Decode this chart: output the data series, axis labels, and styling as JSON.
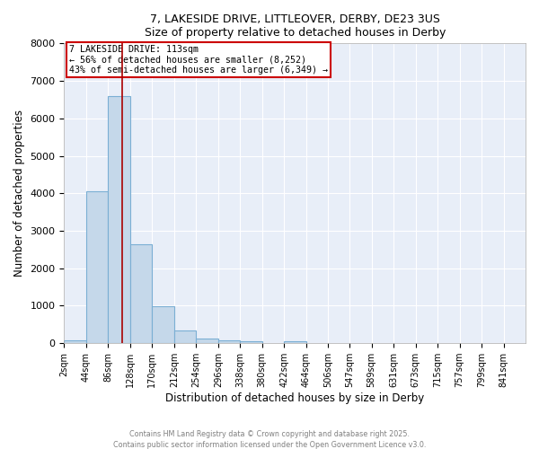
{
  "title_line1": "7, LAKESIDE DRIVE, LITTLEOVER, DERBY, DE23 3US",
  "title_line2": "Size of property relative to detached houses in Derby",
  "xlabel": "Distribution of detached houses by size in Derby",
  "ylabel": "Number of detached properties",
  "bin_edges": [
    2,
    44,
    86,
    128,
    170,
    212,
    254,
    296,
    338,
    380,
    422,
    464,
    506,
    547,
    589,
    631,
    673,
    715,
    757,
    799,
    841
  ],
  "bin_width": 42,
  "bar_heights": [
    80,
    4050,
    6600,
    2650,
    980,
    340,
    120,
    70,
    50,
    0,
    60,
    0,
    0,
    0,
    0,
    0,
    0,
    0,
    0,
    0
  ],
  "bar_color": "#c5d8ea",
  "bar_edgecolor": "#7bafd4",
  "bar_alpha": 1.0,
  "vline_x": 113,
  "vline_color": "#aa0000",
  "annotation_title": "7 LAKESIDE DRIVE: 113sqm",
  "annotation_line2": "← 56% of detached houses are smaller (8,252)",
  "annotation_line3": "43% of semi-detached houses are larger (6,349) →",
  "annotation_box_color": "#cc0000",
  "ylim": [
    0,
    8000
  ],
  "yticks": [
    0,
    1000,
    2000,
    3000,
    4000,
    5000,
    6000,
    7000,
    8000
  ],
  "xlim_min": 2,
  "xlim_max": 883,
  "background_color": "#e8eef8",
  "grid_color": "white",
  "footer_line1": "Contains HM Land Registry data © Crown copyright and database right 2025.",
  "footer_line2": "Contains public sector information licensed under the Open Government Licence v3.0."
}
